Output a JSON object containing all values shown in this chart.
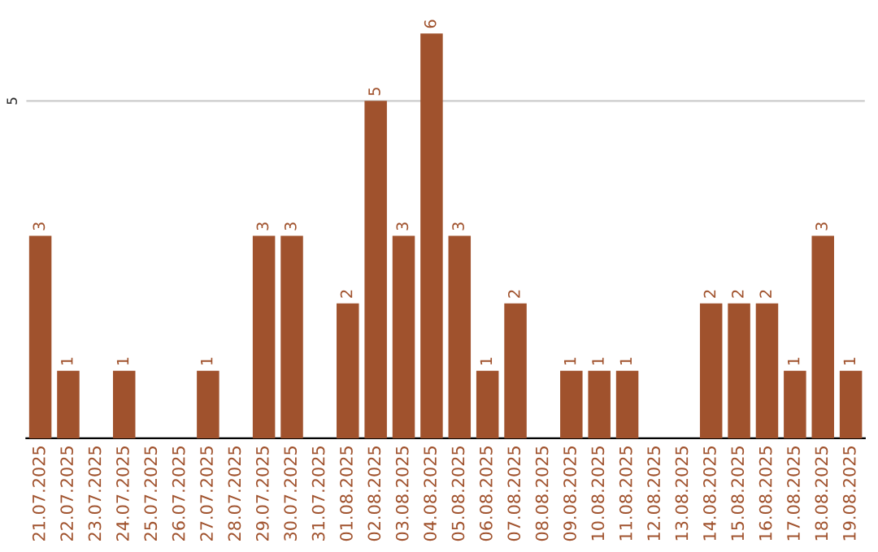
{
  "chart_data": {
    "type": "bar",
    "categories": [
      "21.07.2025",
      "22.07.2025",
      "23.07.2025",
      "24.07.2025",
      "25.07.2025",
      "26.07.2025",
      "27.07.2025",
      "28.07.2025",
      "29.07.2025",
      "30.07.2025",
      "31.07.2025",
      "01.08.2025",
      "02.08.2025",
      "03.08.2025",
      "04.08.2025",
      "05.08.2025",
      "06.08.2025",
      "07.08.2025",
      "08.08.2025",
      "09.08.2025",
      "10.08.2025",
      "11.08.2025",
      "12.08.2025",
      "13.08.2025",
      "14.08.2025",
      "15.08.2025",
      "16.08.2025",
      "17.08.2025",
      "18.08.2025",
      "19.08.2025"
    ],
    "values": [
      3,
      1,
      0,
      1,
      0,
      0,
      1,
      0,
      3,
      3,
      0,
      2,
      5,
      3,
      6,
      3,
      1,
      2,
      0,
      1,
      1,
      1,
      0,
      0,
      2,
      2,
      2,
      1,
      3,
      1
    ],
    "value_labels": [
      "3",
      "1",
      null,
      "1",
      null,
      null,
      "1",
      null,
      "3",
      "3",
      null,
      "2",
      "5",
      "3",
      "6",
      "3",
      "1",
      "2",
      null,
      "1",
      "1",
      "1",
      null,
      null,
      "2",
      "2",
      "2",
      "1",
      "3",
      "1"
    ],
    "color": "#a0522d",
    "ref_lines": [
      {
        "axis": "y",
        "value": 5,
        "label": "5",
        "color": "#cccccc"
      }
    ],
    "legend": false
  }
}
